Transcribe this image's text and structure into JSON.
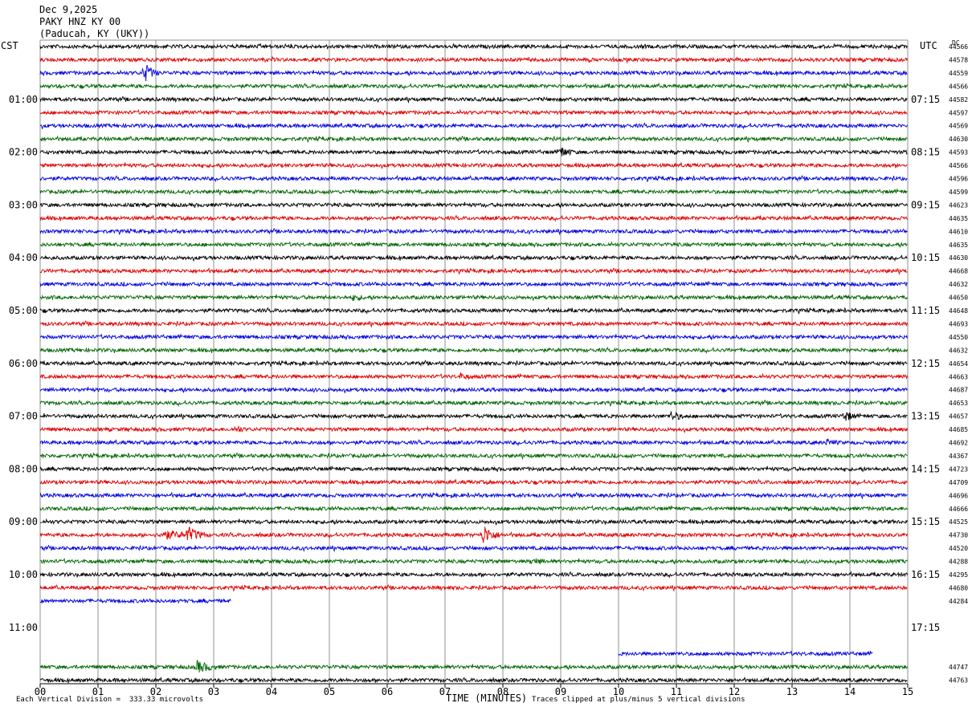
{
  "header": {
    "date": "Dec 9,2025",
    "station": "PAKY HNZ KY 00",
    "location": "(Paducah, KY (UKY))"
  },
  "labels": {
    "left_tz": "CST",
    "right_tz": "UTC",
    "dc": "DC",
    "xlabel": "TIME (MINUTES)",
    "scale_note": "Each Vertical Division =  333.33 microvolts",
    "clip_note": "Traces clipped at plus/minus 5 vertical divisions"
  },
  "colors": {
    "trace_cycle": [
      "#000000",
      "#e00000",
      "#0000e0",
      "#006400"
    ],
    "grid": "#909090"
  },
  "chart_data": {
    "type": "line",
    "title": "PAKY HNZ KY 00",
    "xlabel": "TIME (MINUTES)",
    "xlim": [
      0,
      15
    ],
    "x_ticks": [
      "00",
      "01",
      "02",
      "03",
      "04",
      "05",
      "06",
      "07",
      "08",
      "09",
      "10",
      "11",
      "12",
      "13",
      "14",
      "15"
    ],
    "minutes_per_trace": 15,
    "left_hour_labels": [
      "01:00",
      "02:00",
      "03:00",
      "04:00",
      "05:00",
      "06:00",
      "07:00",
      "08:00",
      "09:00",
      "10:00",
      "11:00"
    ],
    "right_hour_labels": [
      "07:15",
      "08:15",
      "09:15",
      "10:15",
      "11:15",
      "12:15",
      "13:15",
      "14:15",
      "15:15",
      "16:15",
      "17:15"
    ],
    "traces": [
      {
        "row": 0,
        "dc": "44566",
        "end": 15,
        "events": []
      },
      {
        "row": 1,
        "dc": "44578",
        "end": 15,
        "events": []
      },
      {
        "row": 2,
        "dc": "44559",
        "end": 15,
        "events": [
          {
            "t": 1.8,
            "amp": 14,
            "dur": 0.15
          }
        ]
      },
      {
        "row": 3,
        "dc": "44566",
        "end": 15,
        "events": []
      },
      {
        "row": 4,
        "dc": "44582",
        "end": 15,
        "events": []
      },
      {
        "row": 5,
        "dc": "44597",
        "end": 15,
        "events": []
      },
      {
        "row": 6,
        "dc": "44569",
        "end": 15,
        "events": []
      },
      {
        "row": 7,
        "dc": "44630",
        "end": 15,
        "events": []
      },
      {
        "row": 8,
        "dc": "44593",
        "end": 15,
        "events": [
          {
            "t": 9.0,
            "amp": 8,
            "dur": 0.2
          }
        ]
      },
      {
        "row": 9,
        "dc": "44566",
        "end": 15,
        "events": []
      },
      {
        "row": 10,
        "dc": "44596",
        "end": 15,
        "events": []
      },
      {
        "row": 11,
        "dc": "44599",
        "end": 15,
        "events": []
      },
      {
        "row": 12,
        "dc": "44623",
        "end": 15,
        "events": []
      },
      {
        "row": 13,
        "dc": "44635",
        "end": 15,
        "events": []
      },
      {
        "row": 14,
        "dc": "44610",
        "end": 15,
        "events": []
      },
      {
        "row": 15,
        "dc": "44635",
        "end": 15,
        "events": []
      },
      {
        "row": 16,
        "dc": "44630",
        "end": 15,
        "events": []
      },
      {
        "row": 17,
        "dc": "44668",
        "end": 15,
        "events": []
      },
      {
        "row": 18,
        "dc": "44632",
        "end": 15,
        "events": []
      },
      {
        "row": 19,
        "dc": "44650",
        "end": 15,
        "events": [
          {
            "t": 5.4,
            "amp": 5,
            "dur": 0.3
          }
        ]
      },
      {
        "row": 20,
        "dc": "44648",
        "end": 15,
        "events": []
      },
      {
        "row": 21,
        "dc": "44693",
        "end": 15,
        "events": []
      },
      {
        "row": 22,
        "dc": "44550",
        "end": 15,
        "events": []
      },
      {
        "row": 23,
        "dc": "44632",
        "end": 15,
        "events": []
      },
      {
        "row": 24,
        "dc": "44654",
        "end": 15,
        "events": []
      },
      {
        "row": 25,
        "dc": "44663",
        "end": 15,
        "events": [
          {
            "t": 7.25,
            "amp": 5,
            "dur": 0.3
          }
        ]
      },
      {
        "row": 26,
        "dc": "44687",
        "end": 15,
        "events": []
      },
      {
        "row": 27,
        "dc": "44653",
        "end": 15,
        "events": []
      },
      {
        "row": 28,
        "dc": "44657",
        "end": 15,
        "events": [
          {
            "t": 10.9,
            "amp": 7,
            "dur": 0.25
          },
          {
            "t": 13.9,
            "amp": 8,
            "dur": 0.2
          }
        ]
      },
      {
        "row": 29,
        "dc": "44685",
        "end": 15,
        "events": [
          {
            "t": 3.4,
            "amp": 6,
            "dur": 0.15
          }
        ]
      },
      {
        "row": 30,
        "dc": "44692",
        "end": 15,
        "events": [
          {
            "t": 13.6,
            "amp": 5,
            "dur": 0.3
          }
        ]
      },
      {
        "row": 31,
        "dc": "44367",
        "end": 15,
        "events": []
      },
      {
        "row": 32,
        "dc": "44723",
        "end": 15,
        "events": []
      },
      {
        "row": 33,
        "dc": "44709",
        "end": 15,
        "events": []
      },
      {
        "row": 34,
        "dc": "44696",
        "end": 15,
        "events": []
      },
      {
        "row": 35,
        "dc": "44666",
        "end": 15,
        "events": []
      },
      {
        "row": 36,
        "dc": "44525",
        "end": 15,
        "events": []
      },
      {
        "row": 37,
        "dc": "44730",
        "end": 15,
        "events": [
          {
            "t": 2.1,
            "amp": 7,
            "dur": 0.6
          },
          {
            "t": 2.55,
            "amp": 11,
            "dur": 0.25
          },
          {
            "t": 7.65,
            "amp": 14,
            "dur": 0.2
          }
        ]
      },
      {
        "row": 38,
        "dc": "44520",
        "end": 15,
        "events": []
      },
      {
        "row": 39,
        "dc": "44288",
        "end": 15,
        "events": [
          {
            "t": 8.5,
            "amp": 5,
            "dur": 0.4
          }
        ]
      },
      {
        "row": 40,
        "dc": "44295",
        "end": 15,
        "events": []
      },
      {
        "row": 41,
        "dc": "44680",
        "end": 15,
        "events": []
      },
      {
        "row": 42,
        "dc": "44284",
        "end": 3.3,
        "events": []
      },
      {
        "row": 46,
        "dc": "",
        "start": 10,
        "end": 14.4,
        "events": []
      },
      {
        "row": 47,
        "dc": "44747",
        "end": 15,
        "events": [
          {
            "t": 2.7,
            "amp": 9,
            "dur": 0.3
          }
        ]
      },
      {
        "row": 48,
        "dc": "44763",
        "end": 15,
        "events": []
      }
    ]
  }
}
